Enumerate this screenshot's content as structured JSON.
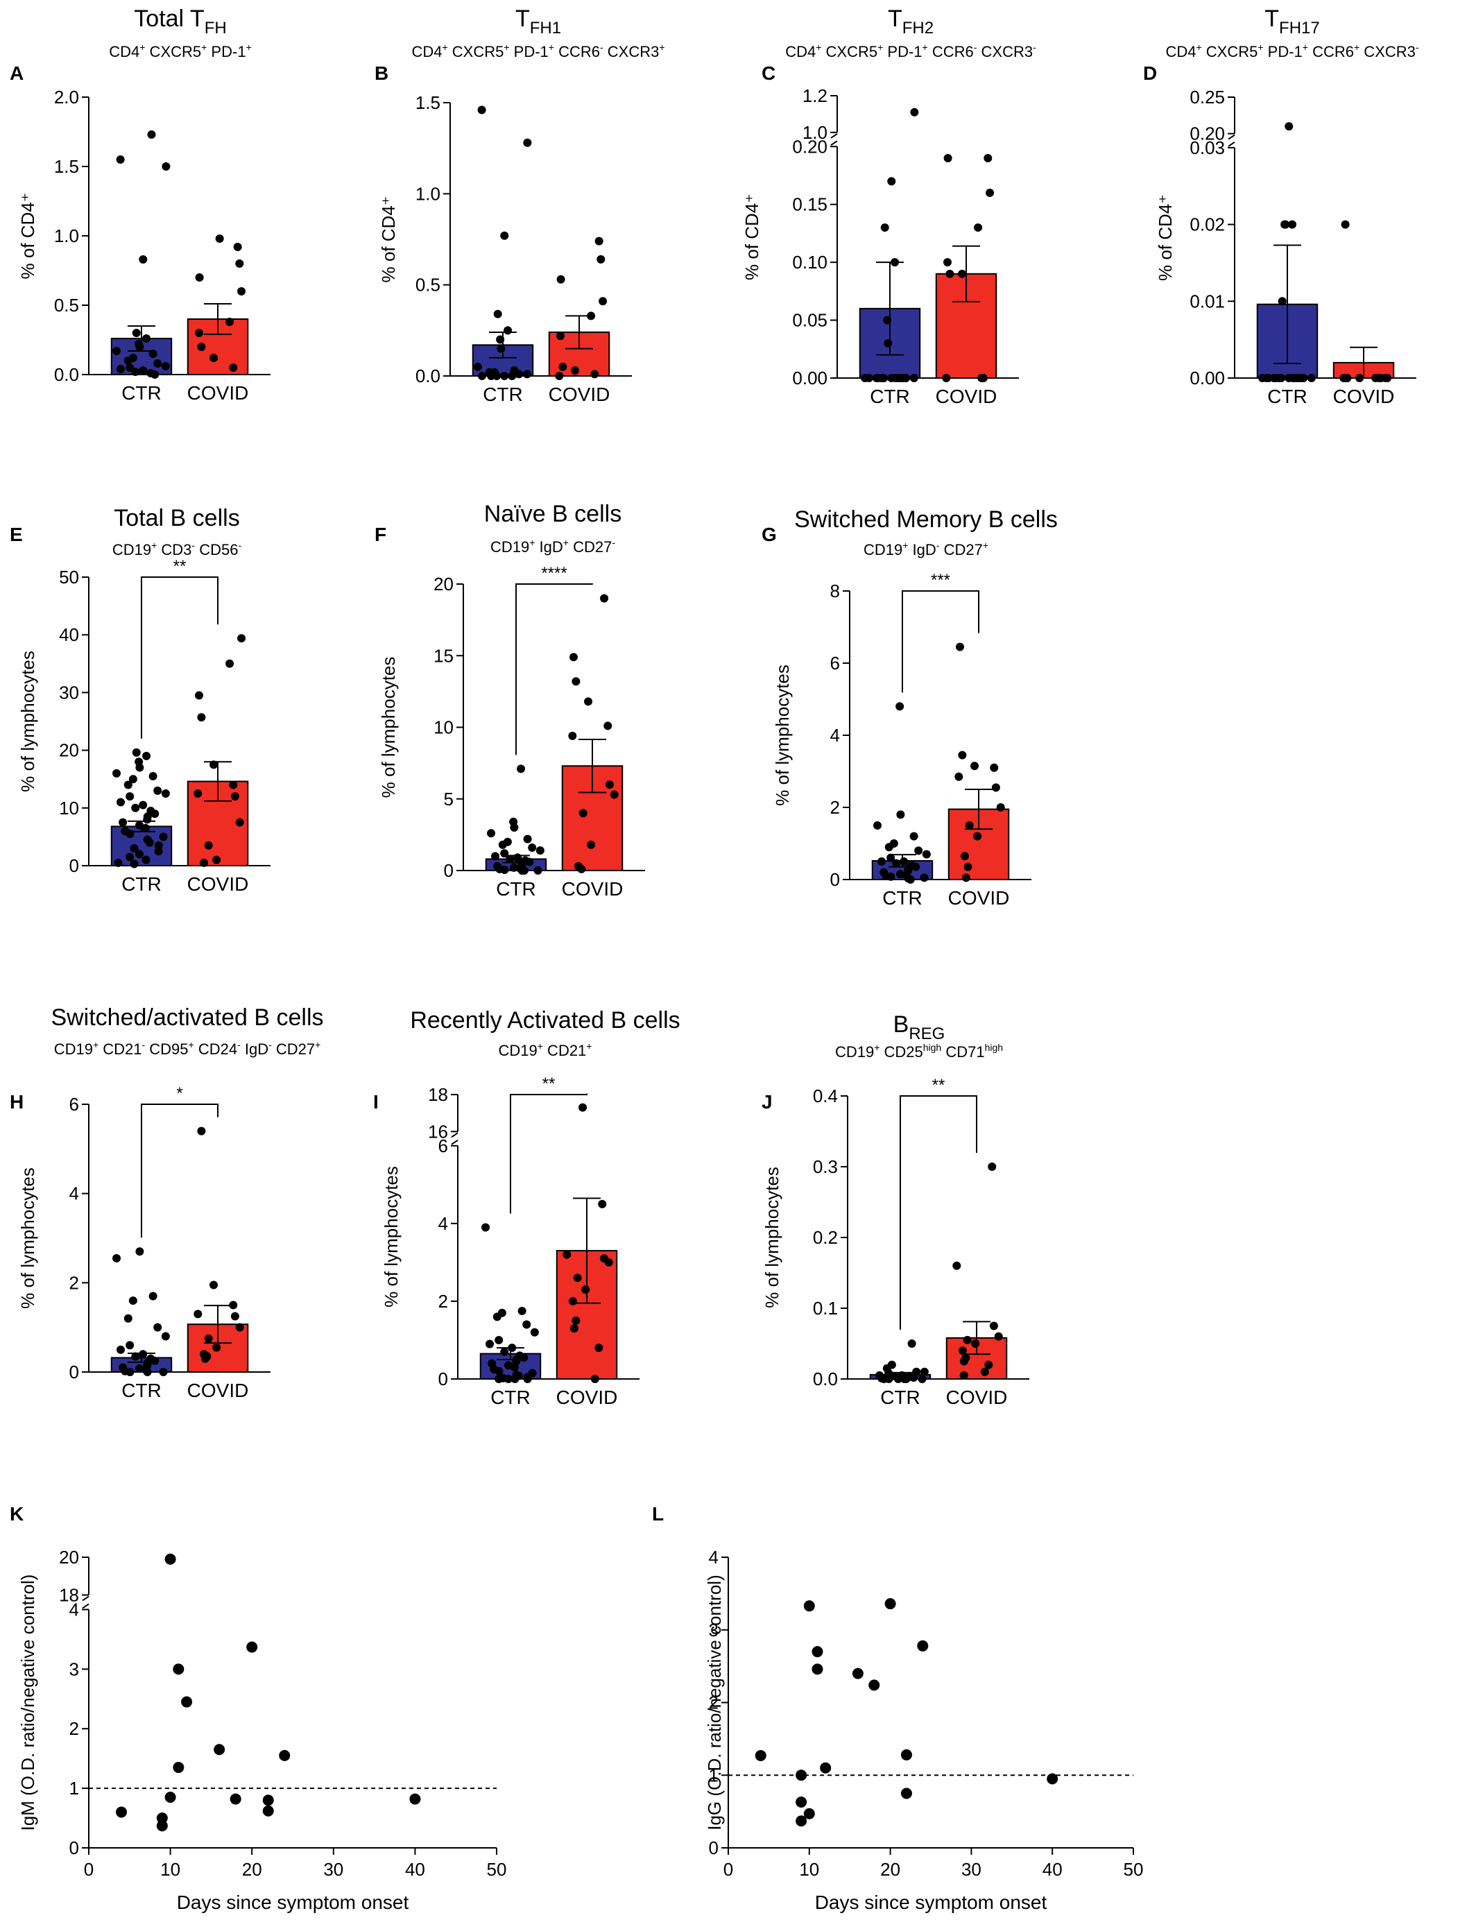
{
  "colors": {
    "ctr": "#2f3192",
    "covid": "#ee2d24",
    "ink": "#000000"
  },
  "panels": [
    {
      "label": "A",
      "title": [
        [
          "Total T",
          ""
        ],
        [
          "FH",
          "sub"
        ]
      ],
      "subtitle": [
        [
          "CD4",
          ""
        ],
        [
          "+",
          "sup"
        ],
        [
          " CXCR5",
          ""
        ],
        [
          "+",
          "sup"
        ],
        [
          " PD-1",
          ""
        ],
        [
          "+",
          "sup"
        ]
      ],
      "ylabel": "% of CD4⁺"
    },
    {
      "label": "B",
      "title": [
        [
          "T",
          ""
        ],
        [
          "FH1",
          "sub"
        ]
      ],
      "subtitle": [
        [
          "CD4",
          ""
        ],
        [
          "+",
          "sup"
        ],
        [
          " CXCR5",
          ""
        ],
        [
          "+",
          "sup"
        ],
        [
          " PD-1",
          ""
        ],
        [
          "+",
          "sup"
        ],
        [
          " CCR6",
          ""
        ],
        [
          "-",
          "sup"
        ],
        [
          " CXCR3",
          ""
        ],
        [
          "+",
          "sup"
        ]
      ],
      "ylabel": "% of CD4⁺"
    },
    {
      "label": "C",
      "title": [
        [
          "T",
          ""
        ],
        [
          "FH2",
          "sub"
        ]
      ],
      "subtitle": [
        [
          "CD4",
          ""
        ],
        [
          "+",
          "sup"
        ],
        [
          " CXCR5",
          ""
        ],
        [
          "+",
          "sup"
        ],
        [
          " PD-1",
          ""
        ],
        [
          "+",
          "sup"
        ],
        [
          " CCR6",
          ""
        ],
        [
          "-",
          "sup"
        ],
        [
          " CXCR3",
          ""
        ],
        [
          "-",
          "sup"
        ]
      ],
      "ylabel": "% of CD4⁺"
    },
    {
      "label": "D",
      "title": [
        [
          "T",
          ""
        ],
        [
          "FH17",
          "sub"
        ]
      ],
      "subtitle": [
        [
          "CD4",
          ""
        ],
        [
          "+",
          "sup"
        ],
        [
          " CXCR5",
          ""
        ],
        [
          "+",
          "sup"
        ],
        [
          " PD-1",
          ""
        ],
        [
          "+",
          "sup"
        ],
        [
          " CCR6",
          ""
        ],
        [
          "+",
          "sup"
        ],
        [
          " CXCR3",
          ""
        ],
        [
          "-",
          "sup"
        ]
      ],
      "ylabel": "% of CD4⁺"
    },
    {
      "label": "E",
      "title": [
        [
          "Total B cells",
          ""
        ]
      ],
      "subtitle": [
        [
          "CD19",
          ""
        ],
        [
          "+",
          "sup"
        ],
        [
          " CD3",
          ""
        ],
        [
          "-",
          "sup"
        ],
        [
          " CD56",
          ""
        ],
        [
          "-",
          "sup"
        ]
      ],
      "ylabel": "% of lymphocytes"
    },
    {
      "label": "F",
      "title": [
        [
          "Naïve B cells",
          ""
        ]
      ],
      "subtitle": [
        [
          "CD19",
          ""
        ],
        [
          "+",
          "sup"
        ],
        [
          " IgD",
          ""
        ],
        [
          "+",
          "sup"
        ],
        [
          " CD27",
          ""
        ],
        [
          "-",
          "sup"
        ]
      ],
      "ylabel": "% of lymphocytes"
    },
    {
      "label": "G",
      "title": [
        [
          "Switched Memory B cells",
          ""
        ]
      ],
      "subtitle": [
        [
          "CD19",
          ""
        ],
        [
          "+",
          "sup"
        ],
        [
          " IgD",
          ""
        ],
        [
          "-",
          "sup"
        ],
        [
          " CD27",
          ""
        ],
        [
          "+",
          "sup"
        ]
      ],
      "ylabel": "% of lymphocytes"
    },
    {
      "label": "H",
      "title": [
        [
          "Switched/activated B cells",
          ""
        ]
      ],
      "subtitle": [
        [
          "CD19",
          ""
        ],
        [
          "+",
          "sup"
        ],
        [
          " CD21",
          ""
        ],
        [
          "-",
          "sup"
        ],
        [
          " CD95",
          ""
        ],
        [
          "+",
          "sup"
        ],
        [
          " CD24",
          ""
        ],
        [
          "-",
          "sup"
        ],
        [
          " IgD",
          ""
        ],
        [
          "-",
          "sup"
        ],
        [
          " CD27",
          ""
        ],
        [
          "+",
          "sup"
        ]
      ],
      "ylabel": "% of lymphocytes"
    },
    {
      "label": "I",
      "title": [
        [
          "Recently Activated B cells",
          ""
        ]
      ],
      "subtitle": [
        [
          "CD19",
          ""
        ],
        [
          "+",
          "sup"
        ],
        [
          " CD21",
          ""
        ],
        [
          "+",
          "sup"
        ]
      ],
      "ylabel": "% of lymphocytes"
    },
    {
      "label": "J",
      "title": [
        [
          "B",
          ""
        ],
        [
          "REG",
          "sub"
        ]
      ],
      "subtitle": [
        [
          "CD19",
          ""
        ],
        [
          "+",
          "sup"
        ],
        [
          " CD25",
          ""
        ],
        [
          "high",
          "sup"
        ],
        [
          " CD71",
          ""
        ],
        [
          "high",
          "sup"
        ]
      ],
      "ylabel": "% of lymphocytes"
    },
    {
      "label": "K",
      "ylabel": "IgM (O.D. ratio/negative control)",
      "xlabel": "Days since symptom onset"
    },
    {
      "label": "L",
      "ylabel": "IgG (O.D. ratio/negative control)",
      "xlabel": "Days since symptom onset"
    }
  ],
  "chart_data": [
    {
      "panel": "A",
      "type": "bar",
      "categories": [
        "CTR",
        "COVID"
      ],
      "y_ticks": [
        "0.0",
        "0.5",
        "1.0",
        "1.5",
        "2.0"
      ],
      "ylim": [
        0,
        2.0
      ],
      "means": [
        0.26,
        0.4
      ],
      "sem": [
        0.09,
        0.11
      ],
      "points": [
        [
          1.73,
          1.55,
          1.5,
          0.83,
          0.3,
          0.26,
          0.22,
          0.2,
          0.17,
          0.15,
          0.12,
          0.1,
          0.08,
          0.06,
          0.05,
          0.04,
          0.03,
          0.02,
          0.01,
          0.0
        ],
        [
          0.98,
          0.92,
          0.8,
          0.7,
          0.6,
          0.38,
          0.3,
          0.2,
          0.12,
          0.05
        ]
      ]
    },
    {
      "panel": "B",
      "type": "bar",
      "categories": [
        "CTR",
        "COVID"
      ],
      "y_ticks": [
        "0.0",
        "0.5",
        "1.0",
        "1.5"
      ],
      "ylim": [
        0,
        1.5
      ],
      "means": [
        0.17,
        0.24
      ],
      "sem": [
        0.07,
        0.09
      ],
      "points": [
        [
          1.46,
          1.28,
          0.77,
          0.34,
          0.25,
          0.2,
          0.15,
          0.05,
          0.03,
          0.02,
          0.02,
          0.01,
          0.01,
          0.0,
          0.0,
          0.0,
          0.0,
          0.0
        ],
        [
          0.74,
          0.64,
          0.53,
          0.41,
          0.33,
          0.22,
          0.05,
          0.03,
          0.01,
          0.0
        ]
      ]
    },
    {
      "panel": "C",
      "type": "bar",
      "categories": [
        "CTR",
        "COVID"
      ],
      "y_ticks": [
        "0.00",
        "0.05",
        "0.10",
        "0.15",
        "0.20",
        "1.0",
        "1.2"
      ],
      "ylim": [
        0,
        0.2
      ],
      "y_break": [
        0.2,
        1.0
      ],
      "y_upper": [
        1.0,
        1.2
      ],
      "means": [
        0.06,
        0.09
      ],
      "sem": [
        0.04,
        0.024
      ],
      "points": [
        [
          1.11,
          0.17,
          0.13,
          0.1,
          0.05,
          0.03,
          0,
          0,
          0,
          0,
          0,
          0,
          0,
          0,
          0,
          0,
          0,
          0,
          0,
          0
        ],
        [
          0.19,
          0.19,
          0.16,
          0.13,
          0.1,
          0.09,
          0.09,
          0,
          0,
          0
        ]
      ]
    },
    {
      "panel": "D",
      "type": "bar",
      "categories": [
        "CTR",
        "COVID"
      ],
      "y_ticks": [
        "0.00",
        "0.01",
        "0.02",
        "0.03",
        "0.20",
        "0.25"
      ],
      "ylim": [
        0,
        0.03
      ],
      "y_break": [
        0.03,
        0.2
      ],
      "y_upper": [
        0.2,
        0.25
      ],
      "means": [
        0.0096,
        0.002
      ],
      "sem": [
        0.0077,
        0.002
      ],
      "points": [
        [
          0.21,
          0.01,
          0.02,
          0.02,
          0.02,
          0,
          0,
          0,
          0,
          0,
          0,
          0,
          0,
          0,
          0,
          0,
          0,
          0,
          0,
          0
        ],
        [
          0.02,
          0,
          0,
          0,
          0,
          0,
          0,
          0,
          0,
          0
        ]
      ]
    },
    {
      "panel": "E",
      "type": "bar",
      "categories": [
        "CTR",
        "COVID"
      ],
      "y_ticks": [
        "0",
        "10",
        "20",
        "30",
        "40",
        "50"
      ],
      "ylim": [
        0,
        50
      ],
      "means": [
        6.8,
        14.6
      ],
      "sem": [
        0.9,
        3.4
      ],
      "significance": "**",
      "points": [
        [
          19.6,
          19.0,
          18.0,
          17.0,
          16.0,
          15.5,
          15.0,
          14.0,
          13.0,
          12.5,
          12.0,
          11.0,
          10.5,
          10.0,
          9.5,
          9.0,
          8.5,
          8.0,
          7.5,
          7.0,
          6.5,
          6.0,
          5.5,
          5.0,
          4.5,
          4.0,
          3.5,
          3.0,
          2.5,
          2.0,
          1.5,
          1.0,
          0.5,
          0.3
        ],
        [
          39.4,
          35.0,
          29.5,
          25.7,
          17.5,
          14.0,
          12.5,
          12.0,
          7.5,
          3.5,
          1.0,
          0.5
        ]
      ]
    },
    {
      "panel": "F",
      "type": "bar",
      "categories": [
        "CTR",
        "COVID"
      ],
      "y_ticks": [
        "0",
        "5",
        "10",
        "15",
        "20"
      ],
      "ylim": [
        0,
        20
      ],
      "means": [
        0.8,
        7.3
      ],
      "sem": [
        0.25,
        1.85
      ],
      "significance": "****",
      "points": [
        [
          7.1,
          3.4,
          3.0,
          2.6,
          2.2,
          2.0,
          1.8,
          1.6,
          1.4,
          1.2,
          1.0,
          0.9,
          0.8,
          0.7,
          0.6,
          0.5,
          0.4,
          0.3,
          0.2,
          0.15,
          0.1,
          0.05,
          0.0,
          0.0,
          0.0
        ],
        [
          19.0,
          14.9,
          13.2,
          11.8,
          10.1,
          9.4,
          6.0,
          5.3,
          4.0,
          1.8,
          0.3,
          0.1
        ]
      ]
    },
    {
      "panel": "G",
      "type": "bar",
      "categories": [
        "CTR",
        "COVID"
      ],
      "y_ticks": [
        "0",
        "2",
        "4",
        "6",
        "8"
      ],
      "ylim": [
        0,
        8
      ],
      "means": [
        0.52,
        1.95
      ],
      "sem": [
        0.17,
        0.55
      ],
      "significance": "***",
      "points": [
        [
          4.8,
          1.8,
          1.5,
          1.2,
          1.0,
          0.9,
          0.8,
          0.7,
          0.6,
          0.5,
          0.5,
          0.45,
          0.4,
          0.35,
          0.3,
          0.25,
          0.2,
          0.15,
          0.12,
          0.1,
          0.08,
          0.05,
          0.03,
          0.0
        ],
        [
          6.45,
          3.45,
          3.15,
          3.1,
          2.85,
          2.55,
          2.0,
          1.5,
          1.2,
          0.65,
          0.35,
          0.05
        ]
      ]
    },
    {
      "panel": "H",
      "type": "bar",
      "categories": [
        "CTR",
        "COVID"
      ],
      "y_ticks": [
        "0",
        "2",
        "4",
        "6"
      ],
      "ylim": [
        0,
        6
      ],
      "means": [
        0.32,
        1.07
      ],
      "sem": [
        0.1,
        0.42
      ],
      "significance": "*",
      "points": [
        [
          2.7,
          2.55,
          1.7,
          1.6,
          1.2,
          1.0,
          0.8,
          0.6,
          0.5,
          0.4,
          0.35,
          0.3,
          0.25,
          0.2,
          0.15,
          0.1,
          0.08,
          0.05,
          0.02,
          0.0,
          0.0,
          0.0
        ],
        [
          5.4,
          1.95,
          1.5,
          1.3,
          1.25,
          1.0,
          0.75,
          0.55,
          0.4,
          0.35,
          0.3
        ]
      ]
    },
    {
      "panel": "I",
      "type": "bar",
      "categories": [
        "CTR",
        "COVID"
      ],
      "y_ticks": [
        "0",
        "2",
        "4",
        "6",
        "16",
        "18"
      ],
      "ylim": [
        0,
        6
      ],
      "y_break": [
        6,
        16
      ],
      "y_upper": [
        16,
        18
      ],
      "means": [
        0.65,
        3.3
      ],
      "sem": [
        0.15,
        1.35
      ],
      "significance": "**",
      "points": [
        [
          3.9,
          1.75,
          1.7,
          1.6,
          1.4,
          1.2,
          1.0,
          0.9,
          0.8,
          0.7,
          0.6,
          0.55,
          0.5,
          0.45,
          0.4,
          0.35,
          0.3,
          0.25,
          0.2,
          0.15,
          0.1,
          0.08,
          0.05,
          0.02,
          0.0,
          0.0,
          0.0,
          0.0
        ],
        [
          17.3,
          4.5,
          3.2,
          3.1,
          3.0,
          2.6,
          2.3,
          2.0,
          1.5,
          1.3,
          0.8,
          0.0
        ]
      ]
    },
    {
      "panel": "J",
      "type": "bar",
      "categories": [
        "CTR",
        "COVID"
      ],
      "y_ticks": [
        "0.0",
        "0.1",
        "0.2",
        "0.3",
        "0.4"
      ],
      "ylim": [
        0,
        0.4
      ],
      "means": [
        0.006,
        0.058
      ],
      "sem": [
        0.003,
        0.023
      ],
      "significance": "**",
      "points": [
        [
          0.05,
          0.02,
          0.015,
          0.01,
          0.01,
          0.008,
          0.005,
          0.005,
          0.004,
          0.003,
          0.002,
          0.002,
          0.001,
          0.001,
          0,
          0,
          0,
          0,
          0,
          0
        ],
        [
          0.3,
          0.16,
          0.075,
          0.06,
          0.055,
          0.05,
          0.04,
          0.03,
          0.025,
          0.02,
          0.01,
          0.005
        ]
      ]
    },
    {
      "panel": "K",
      "type": "scatter",
      "x_ticks": [
        "0",
        "10",
        "20",
        "30",
        "40",
        "50"
      ],
      "xlim": [
        0,
        50
      ],
      "y_ticks": [
        "0",
        "1",
        "2",
        "3",
        "4",
        "18",
        "20"
      ],
      "ylim": [
        0,
        4
      ],
      "y_break": [
        4,
        18
      ],
      "y_upper": [
        18,
        20
      ],
      "reference_line": 1,
      "points": [
        [
          4,
          0.6
        ],
        [
          9,
          0.5
        ],
        [
          9,
          0.37
        ],
        [
          10,
          19.9
        ],
        [
          10,
          0.85
        ],
        [
          11,
          3.0
        ],
        [
          11,
          1.35
        ],
        [
          12,
          2.45
        ],
        [
          16,
          1.65
        ],
        [
          18,
          0.82
        ],
        [
          20,
          3.37
        ],
        [
          22,
          0.8
        ],
        [
          22,
          0.62
        ],
        [
          24,
          1.55
        ],
        [
          40,
          0.82
        ]
      ]
    },
    {
      "panel": "L",
      "type": "scatter",
      "x_ticks": [
        "0",
        "10",
        "20",
        "30",
        "40",
        "50"
      ],
      "xlim": [
        0,
        50
      ],
      "y_ticks": [
        "0",
        "1",
        "2",
        "3",
        "4"
      ],
      "ylim": [
        0,
        4
      ],
      "reference_line": 1,
      "points": [
        [
          4,
          1.27
        ],
        [
          9,
          1.0
        ],
        [
          9,
          0.63
        ],
        [
          9,
          0.37
        ],
        [
          10,
          3.33
        ],
        [
          10,
          0.47
        ],
        [
          11,
          2.7
        ],
        [
          11,
          2.46
        ],
        [
          12,
          1.1
        ],
        [
          16,
          2.4
        ],
        [
          18,
          2.24
        ],
        [
          20,
          3.36
        ],
        [
          22,
          1.28
        ],
        [
          22,
          0.75
        ],
        [
          24,
          2.78
        ],
        [
          40,
          0.95
        ]
      ]
    }
  ]
}
